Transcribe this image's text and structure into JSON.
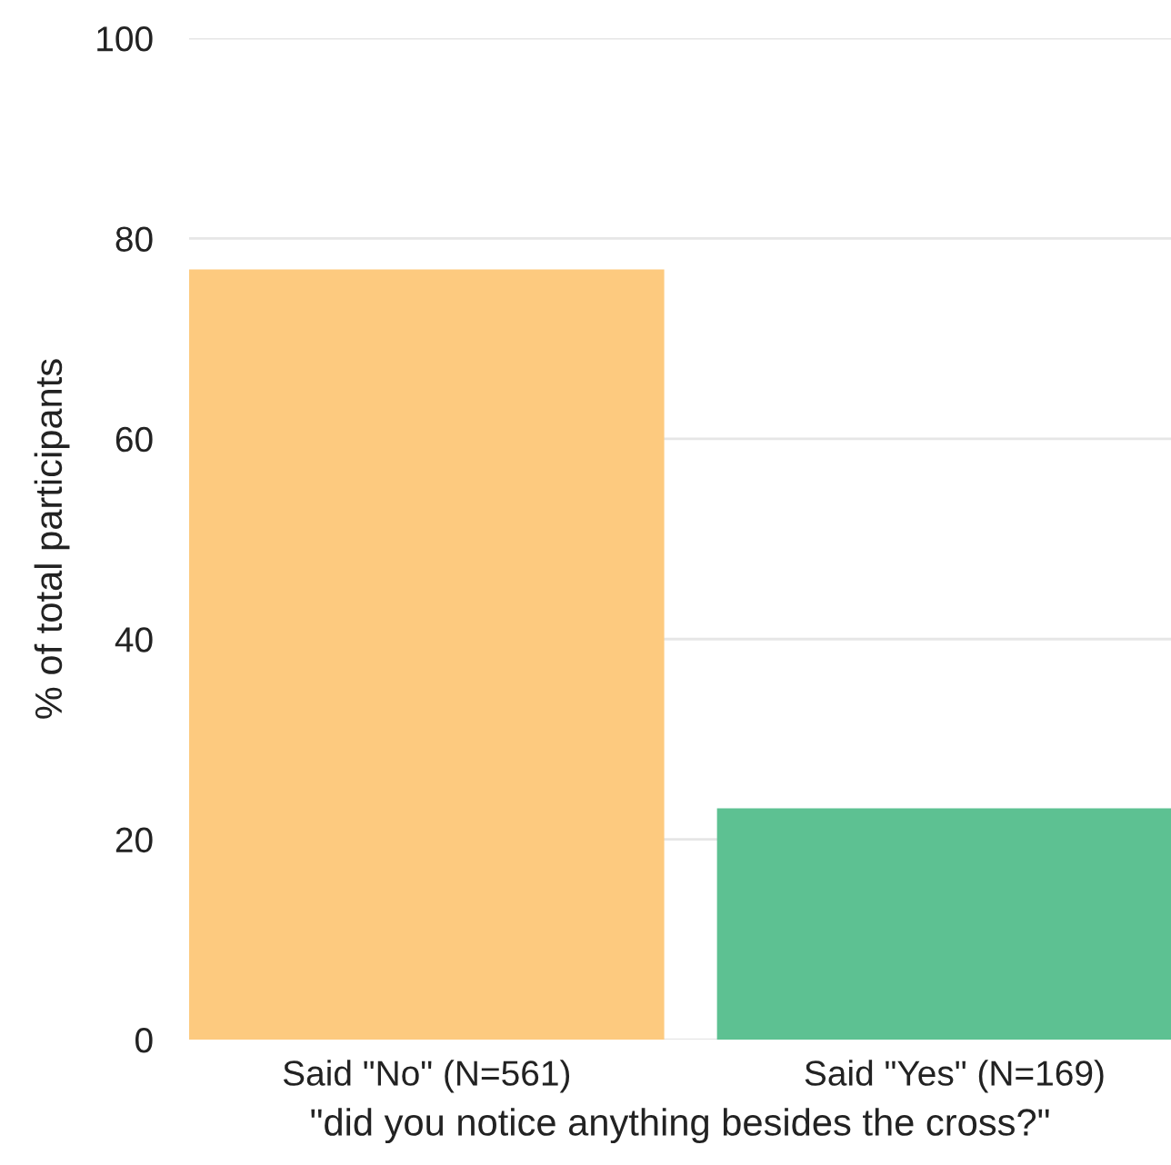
{
  "chart_data": {
    "type": "bar",
    "xlabel": "\"did you notice anything besides the cross?\"",
    "ylabel": "% of total participants",
    "categories": [
      "Said \"No\" (N=561)",
      "Said \"Yes\" (N=169)"
    ],
    "values": [
      76.9,
      23.1
    ],
    "colors": [
      "#fdca7f",
      "#5dc192"
    ],
    "ylim": [
      0,
      100
    ],
    "yticks": [
      0,
      20,
      40,
      60,
      80,
      100
    ],
    "grid": "y"
  }
}
